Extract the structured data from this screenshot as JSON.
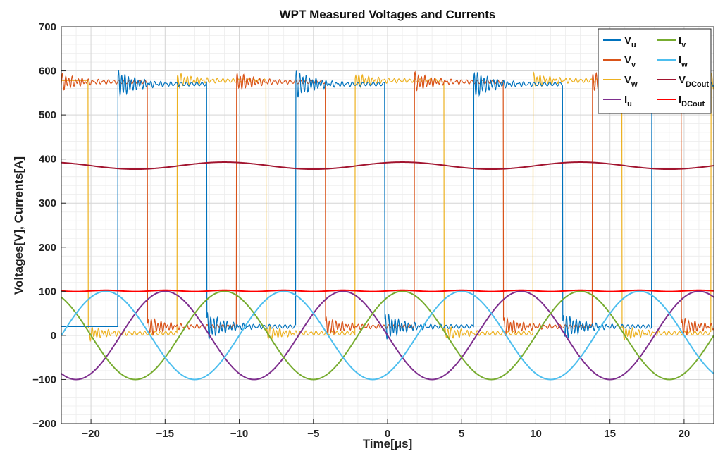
{
  "chart_data": {
    "type": "line",
    "title": "WPT Measured Voltages and Currents",
    "xlabel": "Time[μs]",
    "ylabel": "Voltages[V], Currents[A]",
    "xlim": [
      -22,
      22
    ],
    "ylim": [
      -200,
      700
    ],
    "xticks": [
      -20,
      -15,
      -10,
      -5,
      0,
      5,
      10,
      15,
      20
    ],
    "yticks": [
      -200,
      -100,
      0,
      100,
      200,
      300,
      400,
      500,
      600,
      700
    ],
    "xtick_labels": [
      "−20",
      "−15",
      "−10",
      "−5",
      "0",
      "5",
      "10",
      "15",
      "20"
    ],
    "ytick_labels": [
      "−200",
      "−100",
      "0",
      "100",
      "200",
      "300",
      "400",
      "500",
      "600",
      "700"
    ],
    "grid": true,
    "minor_grid": true,
    "legend_position": "top-right",
    "legend_columns": 2,
    "period_us": 12,
    "series": [
      {
        "name": "V_u",
        "label_main": "V",
        "label_sub": "u",
        "color": "#0072BD",
        "kind": "square",
        "low_level": 20,
        "high_level": 570,
        "rising_edges_us": [
          -18.2,
          -6.2,
          5.8,
          17.8
        ],
        "falling_edges_us": [
          -12.2,
          -0.2,
          11.8
        ],
        "ringing_amplitude": 30
      },
      {
        "name": "V_v",
        "label_main": "V",
        "label_sub": "v",
        "color": "#D95319",
        "kind": "square",
        "low_level": 20,
        "high_level": 575,
        "rising_edges_us": [
          -22.2,
          -10.2,
          1.8,
          13.8
        ],
        "falling_edges_us": [
          -16.2,
          -4.2,
          7.8,
          19.8
        ],
        "ringing_amplitude": 20
      },
      {
        "name": "V_w",
        "label_main": "V",
        "label_sub": "w",
        "color": "#EDB120",
        "kind": "square",
        "low_level": 5,
        "high_level": 578,
        "rising_edges_us": [
          -14.2,
          -2.2,
          9.8,
          21.8
        ],
        "falling_edges_us": [
          -20.2,
          -8.2,
          3.8,
          15.8
        ],
        "ringing_amplitude": 15
      },
      {
        "name": "I_u",
        "label_main": "I",
        "label_sub": "u",
        "color": "#7E2F8E",
        "kind": "sine",
        "amplitude": 100,
        "peak_times_us": [
          -15,
          -3,
          9,
          21
        ]
      },
      {
        "name": "I_v",
        "label_main": "I",
        "label_sub": "v",
        "color": "#77AC30",
        "kind": "sine",
        "amplitude": 100,
        "peak_times_us": [
          -11,
          1,
          13
        ]
      },
      {
        "name": "I_w",
        "label_main": "I",
        "label_sub": "w",
        "color": "#4DBEEE",
        "kind": "sine",
        "amplitude": 100,
        "peak_times_us": [
          -19,
          -7,
          5,
          17
        ]
      },
      {
        "name": "V_DCout",
        "label_main": "V",
        "label_sub": "DCout",
        "color": "#A2142F",
        "kind": "dc",
        "mean": 385,
        "ripple_amplitude": 8,
        "ripple_peak_times_us": [
          -11,
          1,
          13
        ]
      },
      {
        "name": "I_DCout",
        "label_main": "I",
        "label_sub": "DCout",
        "color": "#FF0000",
        "kind": "dc",
        "mean": 101,
        "ripple_amplitude": 1.5,
        "ripple_peak_times_us": [
          -15,
          -11,
          -7,
          -3,
          1,
          5,
          9,
          13,
          17,
          21
        ]
      }
    ]
  }
}
